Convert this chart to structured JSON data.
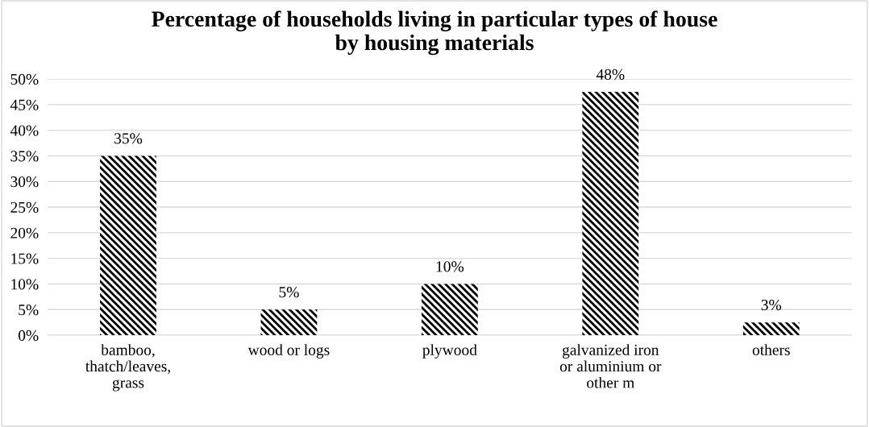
{
  "chart_data": {
    "type": "bar",
    "title": "Percentage of households living in particular types of house\nby housing materials",
    "categories": [
      "bamboo,\nthatch/leaves,\ngrass",
      "wood or logs",
      "plywood",
      "galvanized iron\nor aluminium or\nother m",
      "others"
    ],
    "values": [
      35,
      5,
      10,
      47.5,
      2.5
    ],
    "value_labels": [
      "35%",
      "5%",
      "10%",
      "48%",
      "3%"
    ],
    "color": "#000000",
    "ylim": [
      0,
      50
    ],
    "yticks": [
      {
        "value": 0,
        "label": "0%"
      },
      {
        "value": 5,
        "label": "5%"
      },
      {
        "value": 10,
        "label": "10%"
      },
      {
        "value": 15,
        "label": "15%"
      },
      {
        "value": 20,
        "label": "20%"
      },
      {
        "value": 25,
        "label": "25%"
      },
      {
        "value": 30,
        "label": "30%"
      },
      {
        "value": 35,
        "label": "35%"
      },
      {
        "value": 40,
        "label": "40%"
      },
      {
        "value": 45,
        "label": "45%"
      },
      {
        "value": 50,
        "label": "50%"
      }
    ],
    "grid": "y"
  }
}
